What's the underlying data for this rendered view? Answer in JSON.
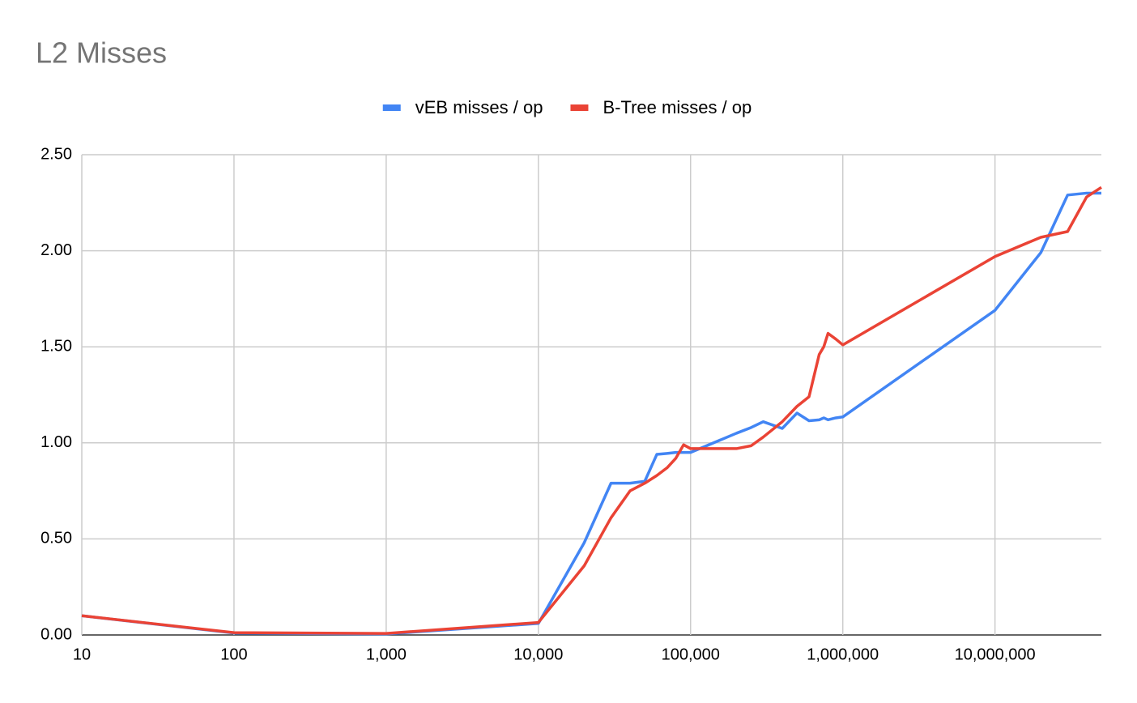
{
  "chart_data": {
    "type": "line",
    "title": "L2 Misses",
    "x": [
      10,
      100,
      1000,
      10000,
      20000,
      30000,
      40000,
      50000,
      60000,
      70000,
      80000,
      90000,
      100000,
      200000,
      250000,
      300000,
      400000,
      500000,
      600000,
      700000,
      750000,
      800000,
      900000,
      1000000,
      10000000,
      20000000,
      30000000,
      40000000,
      50000000
    ],
    "series": [
      {
        "name": "vEB misses / op",
        "color": "#4285f4",
        "values": [
          0.1,
          0.01,
          0.005,
          0.06,
          0.48,
          0.79,
          0.79,
          0.8,
          0.94,
          0.945,
          0.95,
          0.95,
          0.95,
          1.05,
          1.08,
          1.11,
          1.075,
          1.155,
          1.115,
          1.12,
          1.13,
          1.12,
          1.13,
          1.135,
          1.69,
          1.99,
          2.29,
          2.3,
          2.3
        ]
      },
      {
        "name": "B-Tree misses / op",
        "color": "#ea4335",
        "values": [
          0.1,
          0.012,
          0.008,
          0.065,
          0.36,
          0.61,
          0.75,
          0.79,
          0.83,
          0.87,
          0.92,
          0.99,
          0.97,
          0.97,
          0.985,
          1.03,
          1.11,
          1.19,
          1.24,
          1.46,
          1.5,
          1.57,
          1.54,
          1.51,
          1.97,
          2.07,
          2.1,
          2.28,
          2.33
        ]
      }
    ],
    "xscale": "log",
    "xlim": [
      10,
      50000000
    ],
    "xticks": [
      10,
      100,
      {
        "value": 1000,
        "label": "1,000"
      },
      {
        "value": 10000,
        "label": "10,000"
      },
      {
        "value": 100000,
        "label": "100,000"
      },
      {
        "value": 1000000,
        "label": "1,000,000"
      },
      {
        "value": 10000000,
        "label": "10,000,000"
      }
    ],
    "ylim": [
      0,
      2.5
    ],
    "yticks": [
      {
        "value": 0,
        "label": "0.00"
      },
      {
        "value": 0.5,
        "label": "0.50"
      },
      {
        "value": 1,
        "label": "1.00"
      },
      {
        "value": 1.5,
        "label": "1.50"
      },
      {
        "value": 2,
        "label": "2.00"
      },
      {
        "value": 2.5,
        "label": "2.50"
      }
    ],
    "grid": true,
    "legend": "top"
  }
}
